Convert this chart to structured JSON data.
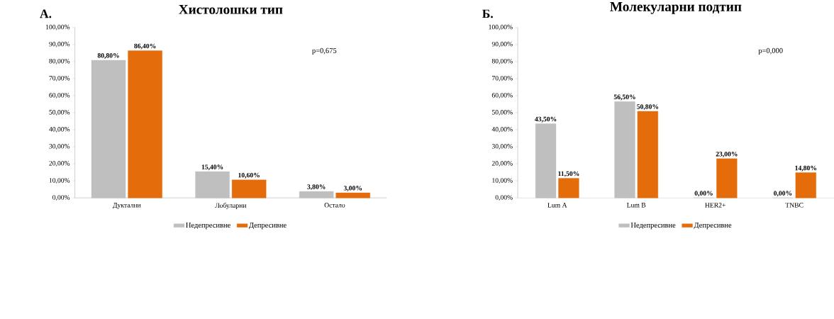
{
  "chart_data": [
    {
      "type": "bar",
      "title": "Хистолошки тип",
      "annotations": [
        "А.",
        "p=0,675"
      ],
      "categories": [
        "Дуктални",
        "Лобуларни",
        "Остало"
      ],
      "series": [
        {
          "name": "Недепресивне",
          "color": "#bfbfbf",
          "values": [
            80.8,
            15.4,
            3.8
          ],
          "value_labels": [
            "80,80%",
            "15,40%",
            "3,80%"
          ]
        },
        {
          "name": "Депресивне",
          "color": "#e46c0a",
          "values": [
            86.4,
            10.6,
            3.0
          ],
          "value_labels": [
            "86,40%",
            "10,60%",
            "3,00%"
          ]
        }
      ],
      "ylim": [
        0,
        100
      ],
      "yticks": [
        {
          "value": 0,
          "label": "0,00%"
        },
        {
          "value": 10,
          "label": "10,00%"
        },
        {
          "value": 20,
          "label": "20,00%"
        },
        {
          "value": 30,
          "label": "30,00%"
        },
        {
          "value": 40,
          "label": "40,00%"
        },
        {
          "value": 50,
          "label": "50,00%"
        },
        {
          "value": 60,
          "label": "60,00%"
        },
        {
          "value": 70,
          "label": "70,00%"
        },
        {
          "value": 80,
          "label": "80,00%"
        },
        {
          "value": 90,
          "label": "90,00%"
        },
        {
          "value": 100,
          "label": "100,00%"
        }
      ],
      "legend": "bottom"
    },
    {
      "type": "bar",
      "title": "Молекуларни подтип",
      "annotations": [
        "Б.",
        "p=0,000"
      ],
      "categories": [
        "Lum A",
        "Lum B",
        "HER2+",
        "TNBC"
      ],
      "series": [
        {
          "name": "Недепресивне",
          "color": "#bfbfbf",
          "values": [
            43.5,
            56.5,
            0,
            0
          ],
          "value_labels": [
            "43,50%",
            "56,50%",
            "0,00%",
            "0,00%"
          ]
        },
        {
          "name": "Депресивне",
          "color": "#e46c0a",
          "values": [
            11.5,
            50.8,
            23.0,
            14.8
          ],
          "value_labels": [
            "11,50%",
            "50,80%",
            "23,00%",
            "14,80%"
          ]
        }
      ],
      "ylim": [
        0,
        100
      ],
      "yticks": [
        {
          "value": 0,
          "label": "0,00%"
        },
        {
          "value": 10,
          "label": "10,00%"
        },
        {
          "value": 20,
          "label": "20,00%"
        },
        {
          "value": 30,
          "label": "30,00%"
        },
        {
          "value": 40,
          "label": "40,00%"
        },
        {
          "value": 50,
          "label": "50,00%"
        },
        {
          "value": 60,
          "label": "60,00%"
        },
        {
          "value": 70,
          "label": "70,00%"
        },
        {
          "value": 80,
          "label": "80,00%"
        },
        {
          "value": 90,
          "label": "90,00%"
        },
        {
          "value": 100,
          "label": "100,00%"
        }
      ],
      "legend": "bottom"
    }
  ]
}
